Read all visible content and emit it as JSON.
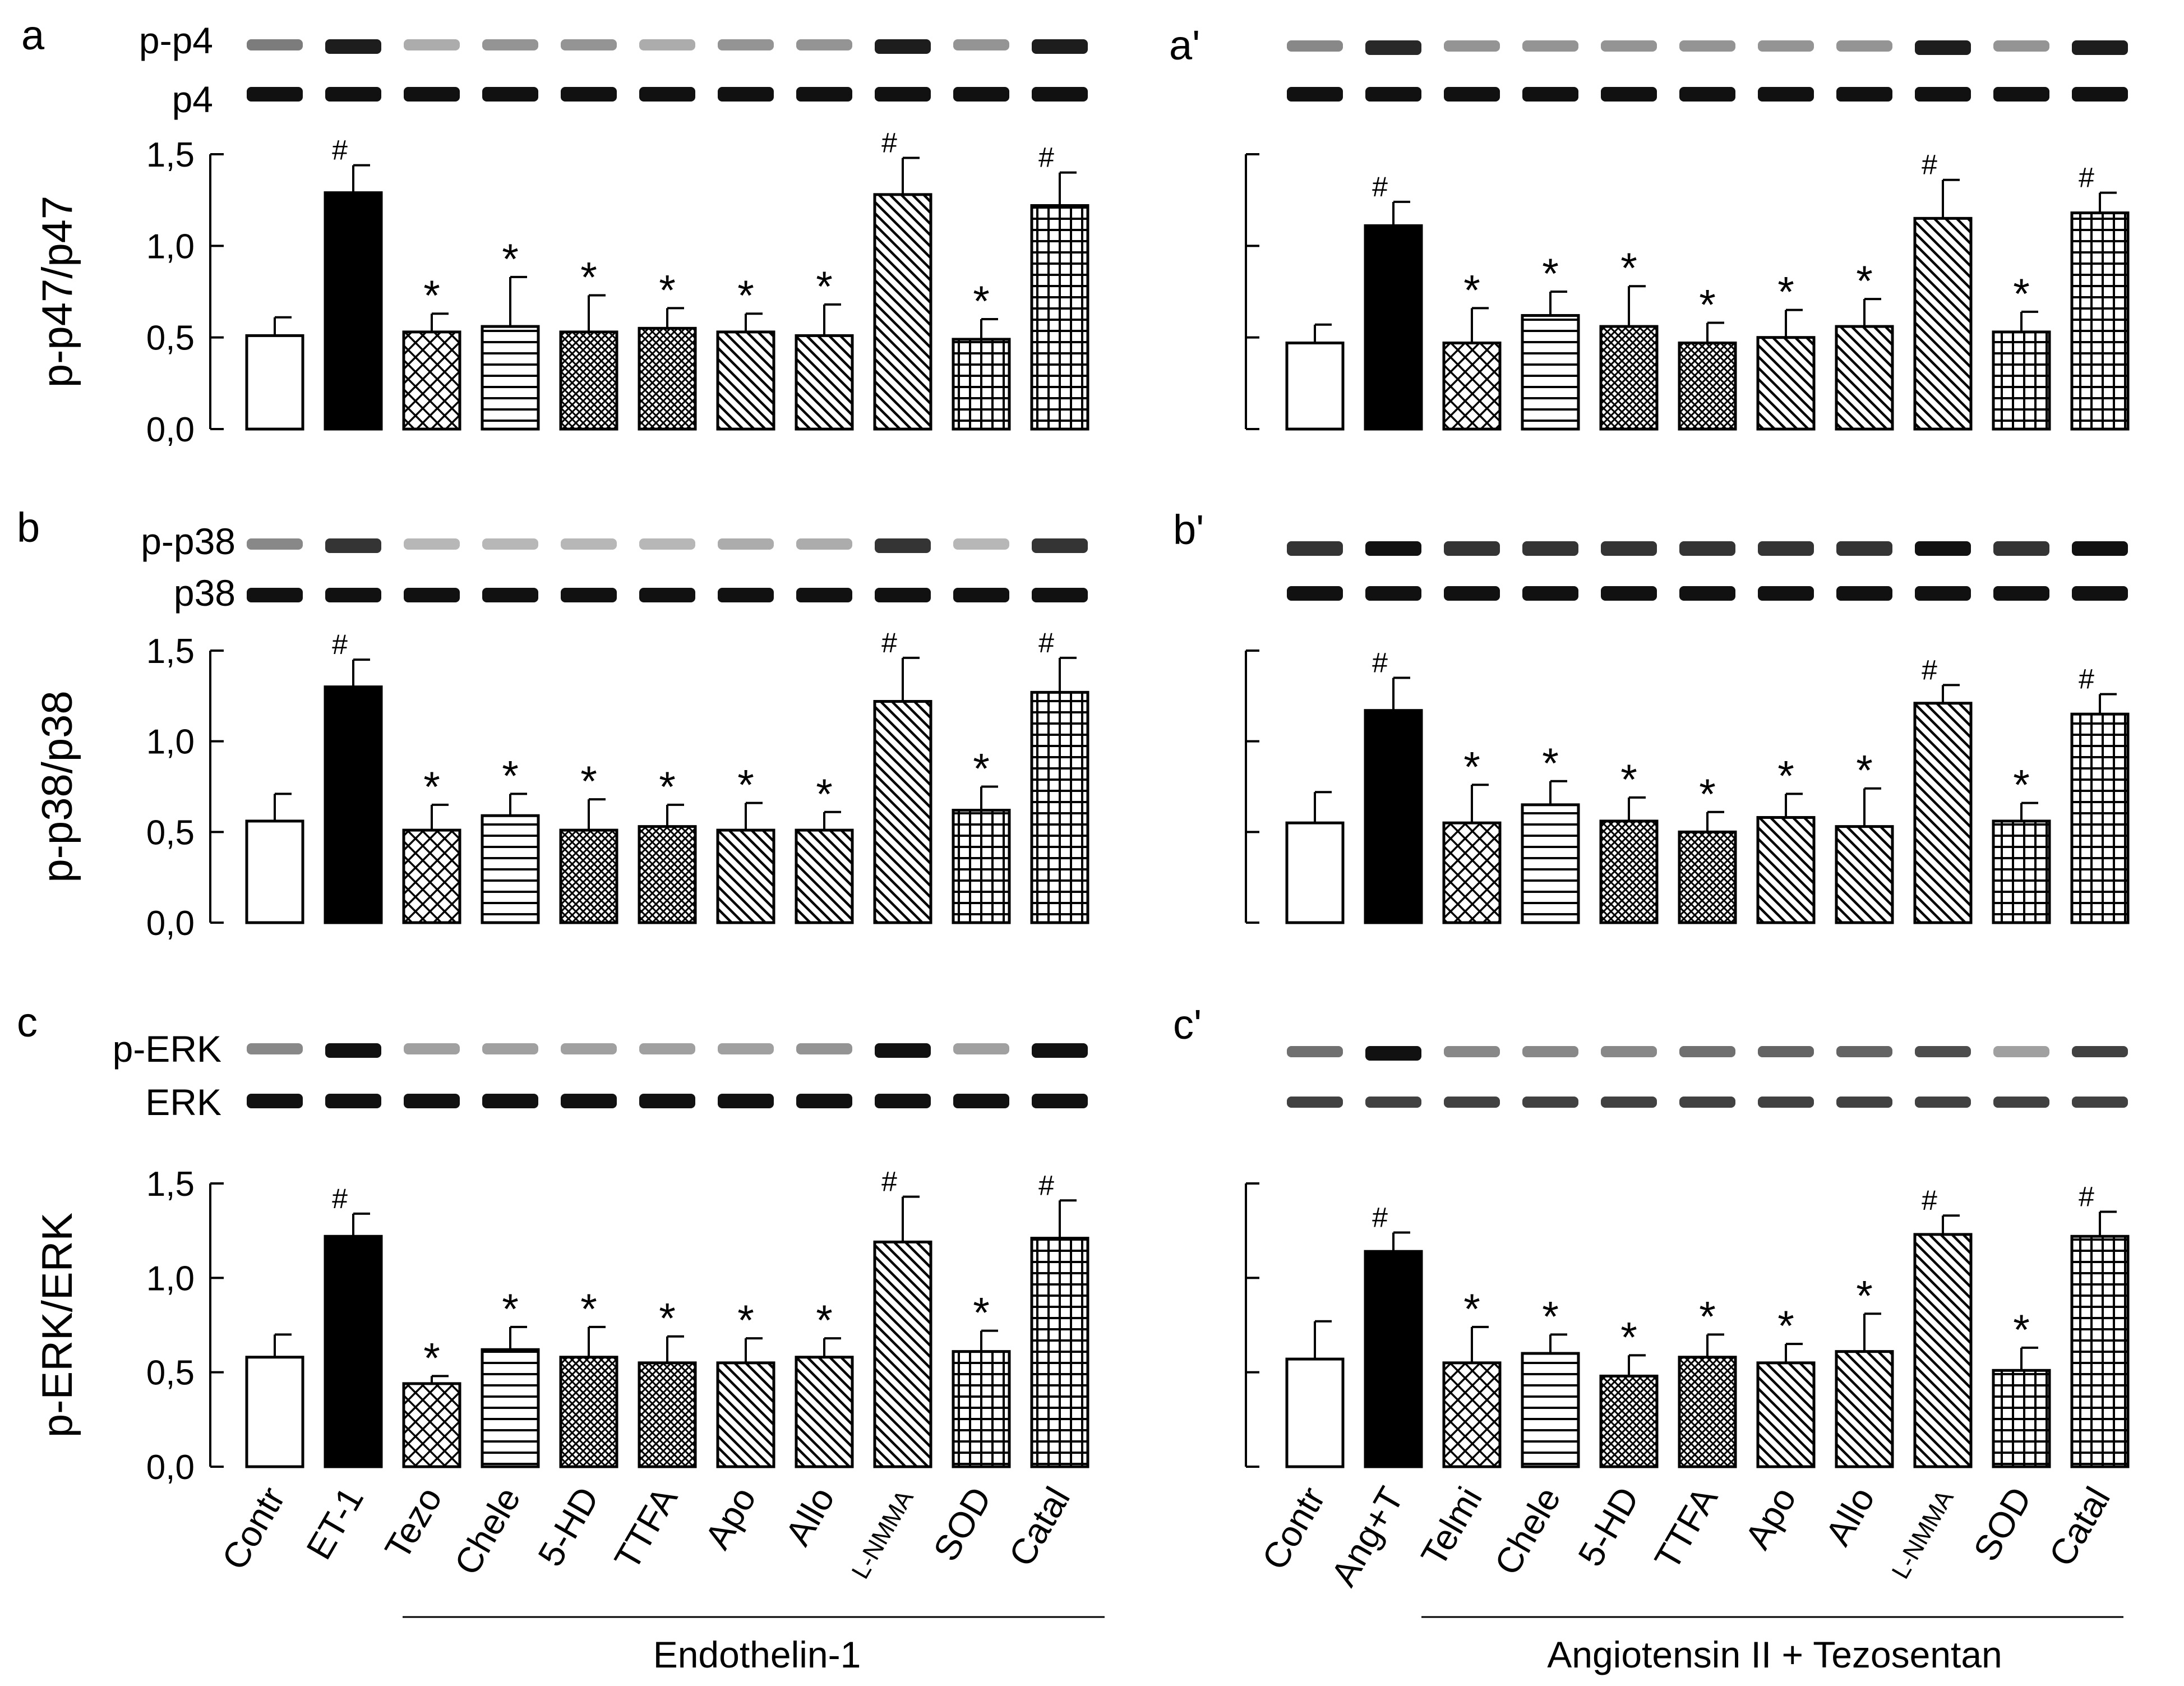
{
  "chart_data": [
    {
      "panel": "a",
      "type": "bar",
      "blot_labels": [
        "p-p4",
        "p4"
      ],
      "ylabel": "p-p47/p47",
      "ylim": [
        0,
        1.5
      ],
      "yticks": [
        "0,0",
        "0,5",
        "1,0",
        "1,5"
      ],
      "show_tick_labels": true,
      "values": [
        0.51,
        1.29,
        0.53,
        0.56,
        0.53,
        0.55,
        0.53,
        0.51,
        1.28,
        0.49,
        1.22
      ],
      "errors": [
        0.1,
        0.15,
        0.1,
        0.27,
        0.2,
        0.11,
        0.1,
        0.17,
        0.2,
        0.11,
        0.18
      ],
      "marks": [
        "",
        "#",
        "*",
        "*",
        "*",
        "*",
        "*",
        "*",
        "#",
        "*",
        "#"
      ],
      "band_intensity_top": [
        0.55,
        0.95,
        0.35,
        0.45,
        0.45,
        0.35,
        0.45,
        0.45,
        0.95,
        0.45,
        0.95
      ],
      "band_intensity_bottom": [
        1,
        1,
        1,
        1,
        1,
        1,
        1,
        1,
        1,
        1,
        1
      ]
    },
    {
      "panel": "a'",
      "type": "bar",
      "blot_labels": [],
      "ylabel": "",
      "ylim": [
        0,
        1.5
      ],
      "yticks": [
        "",
        "",
        "",
        ""
      ],
      "show_tick_labels": false,
      "values": [
        0.47,
        1.11,
        0.47,
        0.62,
        0.56,
        0.47,
        0.5,
        0.56,
        1.15,
        0.53,
        1.18
      ],
      "errors": [
        0.1,
        0.13,
        0.19,
        0.13,
        0.22,
        0.11,
        0.15,
        0.15,
        0.21,
        0.11,
        0.11
      ],
      "marks": [
        "",
        "#",
        "*",
        "*",
        "*",
        "*",
        "*",
        "*",
        "#",
        "*",
        "#"
      ],
      "band_intensity_top": [
        0.5,
        0.9,
        0.45,
        0.45,
        0.45,
        0.45,
        0.45,
        0.45,
        0.95,
        0.45,
        0.95
      ],
      "band_intensity_bottom": [
        1,
        1,
        1,
        1,
        1,
        1,
        1,
        1,
        1,
        1,
        1
      ]
    },
    {
      "panel": "b",
      "type": "bar",
      "blot_labels": [
        "p-p38",
        "p38"
      ],
      "ylabel": "p-p38/p38",
      "ylim": [
        0,
        1.5
      ],
      "yticks": [
        "0,0",
        "0,5",
        "1,0",
        "1,5"
      ],
      "show_tick_labels": true,
      "values": [
        0.56,
        1.3,
        0.51,
        0.59,
        0.51,
        0.53,
        0.51,
        0.51,
        1.22,
        0.62,
        1.27
      ],
      "errors": [
        0.15,
        0.15,
        0.14,
        0.12,
        0.17,
        0.12,
        0.15,
        0.1,
        0.24,
        0.13,
        0.19
      ],
      "marks": [
        "",
        "#",
        "*",
        "*",
        "*",
        "*",
        "*",
        "*",
        "#",
        "*",
        "#"
      ],
      "band_intensity_top": [
        0.5,
        0.85,
        0.3,
        0.3,
        0.3,
        0.3,
        0.35,
        0.35,
        0.85,
        0.3,
        0.85
      ],
      "band_intensity_bottom": [
        1,
        1,
        1,
        1,
        1,
        1,
        1,
        1,
        1,
        1,
        1
      ]
    },
    {
      "panel": "b'",
      "type": "bar",
      "blot_labels": [],
      "ylabel": "",
      "ylim": [
        0,
        1.5
      ],
      "yticks": [
        "",
        "",
        "",
        ""
      ],
      "show_tick_labels": false,
      "values": [
        0.55,
        1.17,
        0.55,
        0.65,
        0.56,
        0.5,
        0.58,
        0.53,
        1.21,
        0.56,
        1.15
      ],
      "errors": [
        0.17,
        0.18,
        0.21,
        0.13,
        0.13,
        0.11,
        0.13,
        0.21,
        0.1,
        0.1,
        0.11
      ],
      "marks": [
        "",
        "#",
        "*",
        "*",
        "*",
        "*",
        "*",
        "*",
        "#",
        "*",
        "#"
      ],
      "band_intensity_top": [
        0.85,
        1,
        0.85,
        0.85,
        0.85,
        0.85,
        0.85,
        0.85,
        1,
        0.85,
        1
      ],
      "band_intensity_bottom": [
        1,
        1,
        1,
        1,
        1,
        1,
        1,
        1,
        1,
        1,
        1
      ]
    },
    {
      "panel": "c",
      "type": "bar",
      "blot_labels": [
        "p-ERK",
        "ERK"
      ],
      "ylabel": "p-ERK/ERK",
      "ylim": [
        0,
        1.5
      ],
      "yticks": [
        "0,0",
        "0,5",
        "1,0",
        "1,5"
      ],
      "show_tick_labels": true,
      "values": [
        0.58,
        1.22,
        0.44,
        0.62,
        0.58,
        0.55,
        0.55,
        0.58,
        1.19,
        0.61,
        1.21
      ],
      "errors": [
        0.12,
        0.12,
        0.04,
        0.12,
        0.16,
        0.14,
        0.13,
        0.1,
        0.24,
        0.11,
        0.2
      ],
      "marks": [
        "",
        "#",
        "*",
        "*",
        "*",
        "*",
        "*",
        "*",
        "#",
        "*",
        "#"
      ],
      "band_intensity_top": [
        0.5,
        1,
        0.4,
        0.4,
        0.4,
        0.4,
        0.4,
        0.45,
        1,
        0.4,
        1
      ],
      "band_intensity_bottom": [
        1,
        1,
        1,
        1,
        1,
        1,
        1,
        1,
        1,
        1,
        1
      ]
    },
    {
      "panel": "c'",
      "type": "bar",
      "blot_labels": [],
      "ylabel": "",
      "ylim": [
        0,
        1.5
      ],
      "yticks": [
        "",
        "",
        "",
        ""
      ],
      "show_tick_labels": false,
      "values": [
        0.57,
        1.14,
        0.55,
        0.6,
        0.48,
        0.58,
        0.55,
        0.61,
        1.23,
        0.51,
        1.22
      ],
      "errors": [
        0.2,
        0.1,
        0.19,
        0.1,
        0.11,
        0.12,
        0.1,
        0.2,
        0.1,
        0.12,
        0.13
      ],
      "marks": [
        "",
        "#",
        "*",
        "*",
        "*",
        "*",
        "*",
        "*",
        "#",
        "*",
        "#"
      ],
      "band_intensity_top": [
        0.6,
        1,
        0.5,
        0.5,
        0.5,
        0.6,
        0.65,
        0.65,
        0.75,
        0.4,
        0.8
      ],
      "band_intensity_bottom": [
        0.8,
        0.8,
        0.8,
        0.8,
        0.8,
        0.8,
        0.8,
        0.8,
        0.8,
        0.8,
        0.8
      ]
    }
  ],
  "categories": {
    "left": [
      "Contr",
      "ET-1",
      "Tezo",
      "Chele",
      "5-HD",
      "TTFA",
      "Apo",
      "Allo",
      "L-NMMA",
      "SOD",
      "Catal"
    ],
    "right": [
      "Contr",
      "Ang+T",
      "Telmi",
      "Chele",
      "5-HD",
      "TTFA",
      "Apo",
      "Allo",
      "L-NMMA",
      "SOD",
      "Catal"
    ]
  },
  "patterns": [
    "white",
    "black",
    "crosshatch",
    "horizontal",
    "densecross",
    "densecross",
    "diagonal",
    "diagonal",
    "diagonal",
    "grid",
    "grid"
  ],
  "group_labels": {
    "left": "Endothelin-1",
    "right": "Angiotensin II + Tezosentan"
  }
}
